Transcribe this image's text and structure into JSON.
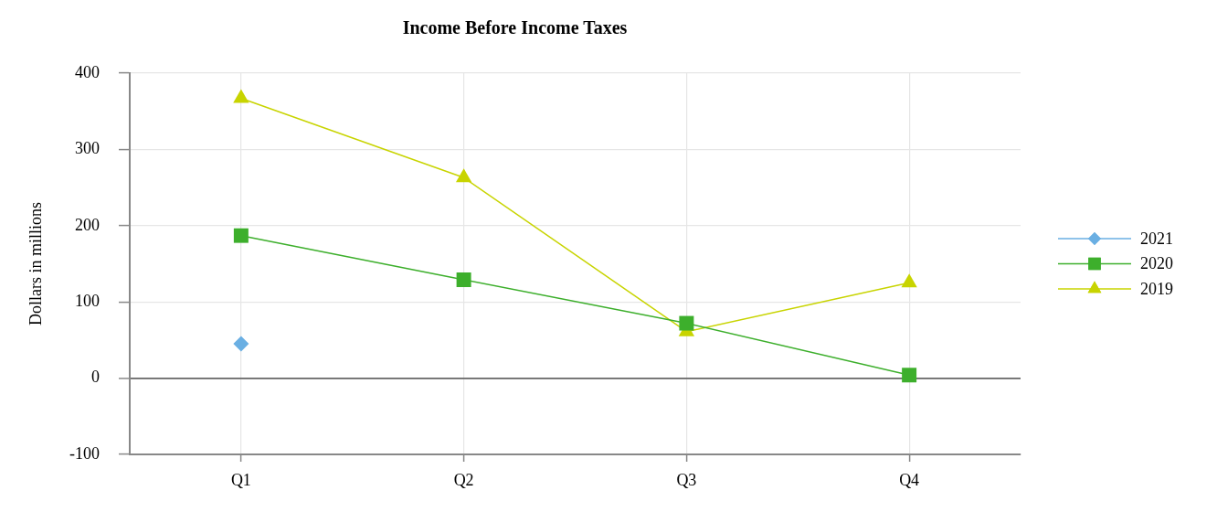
{
  "chart_data": {
    "type": "line",
    "title": "Income Before Income Taxes",
    "ylabel": "Dollars in millions",
    "categories": [
      "Q1",
      "Q2",
      "Q3",
      "Q4"
    ],
    "series": [
      {
        "name": "2021",
        "color": "#6aafe3",
        "marker": "diamond",
        "values": [
          45,
          null,
          null,
          null
        ]
      },
      {
        "name": "2020",
        "color": "#3daf2c",
        "marker": "square",
        "values": [
          187,
          129,
          72,
          4
        ]
      },
      {
        "name": "2019",
        "color": "#c8d400",
        "marker": "triangle",
        "values": [
          367,
          263,
          61,
          125
        ]
      }
    ],
    "ylim": [
      -100,
      400
    ],
    "yticks": [
      -100,
      0,
      100,
      200,
      300,
      400
    ],
    "grid": true,
    "legend": "right"
  }
}
